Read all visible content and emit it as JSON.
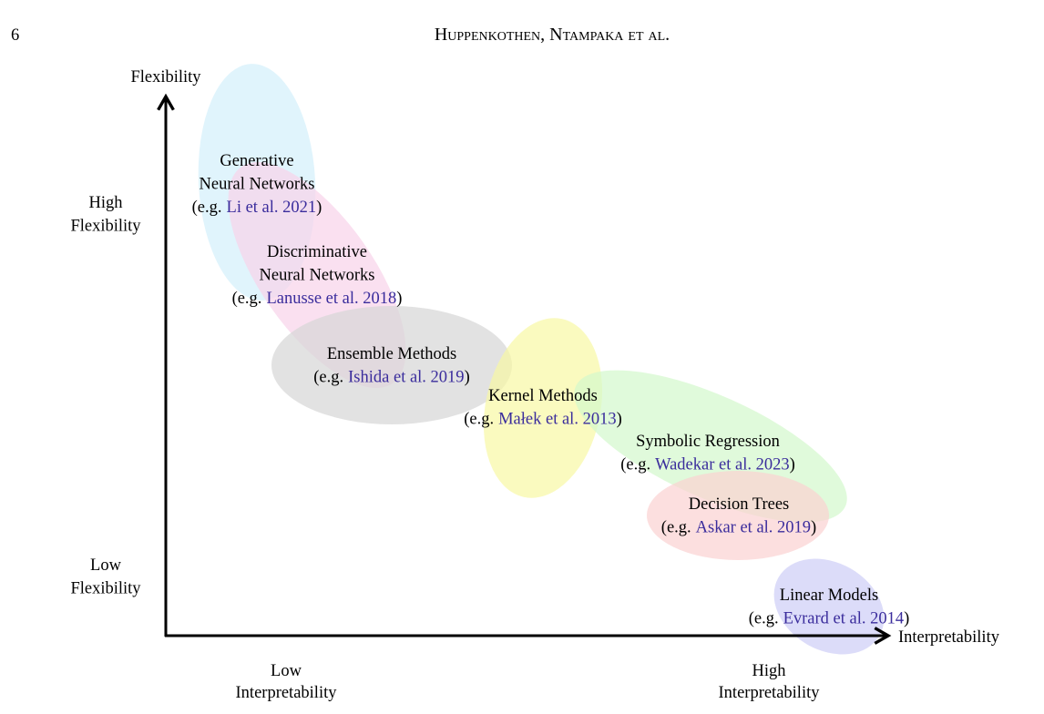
{
  "header": {
    "page_number": "6",
    "running_title": "Huppenkothen, Ntampaka et al."
  },
  "figure": {
    "y_axis_label": "Flexibility",
    "x_axis_label": "Interpretability",
    "y_levels": [
      [
        "High",
        "Flexibility"
      ],
      [
        "Low",
        "Flexibility"
      ]
    ],
    "x_levels": [
      [
        "Low",
        "Interpretability"
      ],
      [
        "High",
        "Interpretability"
      ]
    ],
    "methods": [
      {
        "name": [
          "Generative",
          "Neural Networks"
        ],
        "example_prefix": "(e.g.",
        "citation": "Li et al. 2021",
        "example_suffix": ")"
      },
      {
        "name": [
          "Discriminative",
          "Neural Networks"
        ],
        "example_prefix": "(e.g.",
        "citation": "Lanusse et al. 2018",
        "example_suffix": ")"
      },
      {
        "name": [
          "Ensemble Methods"
        ],
        "example_prefix": "(e.g.",
        "citation": "Ishida et al. 2019",
        "example_suffix": ")"
      },
      {
        "name": [
          "Kernel Methods"
        ],
        "example_prefix": "(e.g.",
        "citation": "Małek et al. 2013",
        "example_suffix": ")"
      },
      {
        "name": [
          "Symbolic Regression"
        ],
        "example_prefix": "(e.g.",
        "citation": "Wadekar et al. 2023",
        "example_suffix": ")"
      },
      {
        "name": [
          "Decision Trees"
        ],
        "example_prefix": "(e.g.",
        "citation": "Askar et al. 2019",
        "example_suffix": ")"
      },
      {
        "name": [
          "Linear Models"
        ],
        "example_prefix": "(e.g.",
        "citation": "Evrard et al. 2014",
        "example_suffix": ")"
      }
    ]
  }
}
